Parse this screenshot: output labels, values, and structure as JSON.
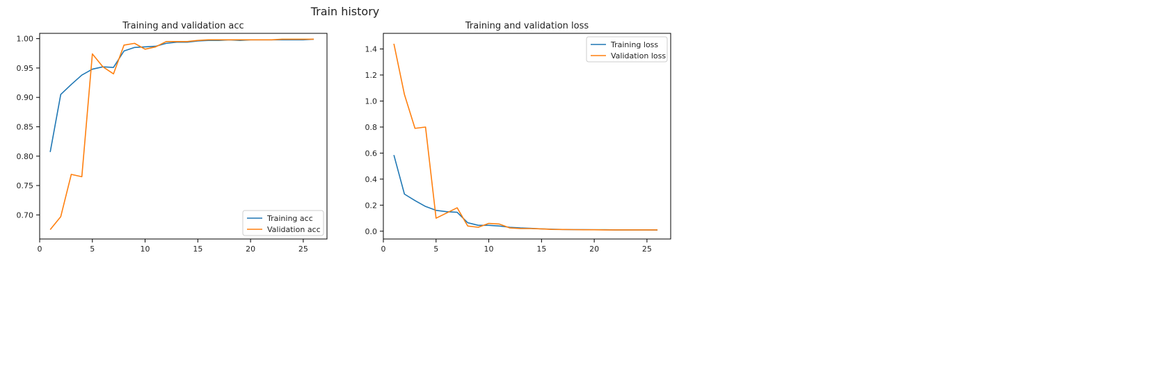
{
  "figure": {
    "suptitle": "Train history"
  },
  "colors": {
    "series1": "#1f77b4",
    "series2": "#ff7f0e",
    "axis": "#000000",
    "text": "#222222"
  },
  "chart_data": [
    {
      "type": "line",
      "title": "Training and validation acc",
      "xlabel": "",
      "ylabel": "",
      "xlim": [
        0,
        27.25
      ],
      "ylim": [
        0.659,
        1.009
      ],
      "xticks": [
        0,
        5,
        10,
        15,
        20,
        25
      ],
      "yticks": [
        0.7,
        0.75,
        0.8,
        0.85,
        0.9,
        0.95,
        1.0
      ],
      "ytick_labels": [
        "0.70",
        "0.75",
        "0.80",
        "0.85",
        "0.90",
        "0.95",
        "1.00"
      ],
      "grid": false,
      "legend_position": "lower-right",
      "x": [
        1,
        2,
        3,
        4,
        5,
        6,
        7,
        8,
        9,
        10,
        11,
        12,
        13,
        14,
        15,
        16,
        17,
        18,
        19,
        20,
        21,
        22,
        23,
        24,
        25,
        26
      ],
      "series": [
        {
          "name": "Training acc",
          "color": "#1f77b4",
          "values": [
            0.807,
            0.905,
            0.922,
            0.938,
            0.948,
            0.952,
            0.951,
            0.979,
            0.985,
            0.986,
            0.987,
            0.992,
            0.994,
            0.994,
            0.996,
            0.997,
            0.997,
            0.998,
            0.997,
            0.998,
            0.998,
            0.998,
            0.998,
            0.998,
            0.998,
            0.999
          ]
        },
        {
          "name": "Validation acc",
          "color": "#ff7f0e",
          "values": [
            0.675,
            0.697,
            0.769,
            0.765,
            0.974,
            0.952,
            0.94,
            0.989,
            0.992,
            0.982,
            0.986,
            0.995,
            0.995,
            0.995,
            0.997,
            0.998,
            0.998,
            0.998,
            0.998,
            0.998,
            0.998,
            0.998,
            0.999,
            0.999,
            0.999,
            0.999
          ]
        }
      ]
    },
    {
      "type": "line",
      "title": "Training and validation loss",
      "xlabel": "",
      "ylabel": "",
      "xlim": [
        0,
        27.25
      ],
      "ylim": [
        -0.06,
        1.52
      ],
      "xticks": [
        0,
        5,
        10,
        15,
        20,
        25
      ],
      "yticks": [
        0.0,
        0.2,
        0.4,
        0.6,
        0.8,
        1.0,
        1.2,
        1.4
      ],
      "ytick_labels": [
        "0.0",
        "0.2",
        "0.4",
        "0.6",
        "0.8",
        "1.0",
        "1.2",
        "1.4"
      ],
      "grid": false,
      "legend_position": "top-right",
      "x": [
        1,
        2,
        3,
        4,
        5,
        6,
        7,
        8,
        9,
        10,
        11,
        12,
        13,
        14,
        15,
        16,
        17,
        18,
        19,
        20,
        21,
        22,
        23,
        24,
        25,
        26
      ],
      "series": [
        {
          "name": "Training loss",
          "color": "#1f77b4",
          "values": [
            0.585,
            0.285,
            0.235,
            0.19,
            0.16,
            0.15,
            0.145,
            0.065,
            0.045,
            0.045,
            0.04,
            0.03,
            0.025,
            0.022,
            0.018,
            0.015,
            0.013,
            0.012,
            0.012,
            0.011,
            0.011,
            0.01,
            0.01,
            0.01,
            0.01,
            0.009
          ]
        },
        {
          "name": "Validation loss",
          "color": "#ff7f0e",
          "values": [
            1.44,
            1.05,
            0.79,
            0.8,
            0.1,
            0.14,
            0.18,
            0.04,
            0.03,
            0.06,
            0.055,
            0.025,
            0.02,
            0.02,
            0.018,
            0.014,
            0.013,
            0.012,
            0.011,
            0.011,
            0.01,
            0.01,
            0.01,
            0.01,
            0.01,
            0.01
          ]
        }
      ]
    }
  ]
}
